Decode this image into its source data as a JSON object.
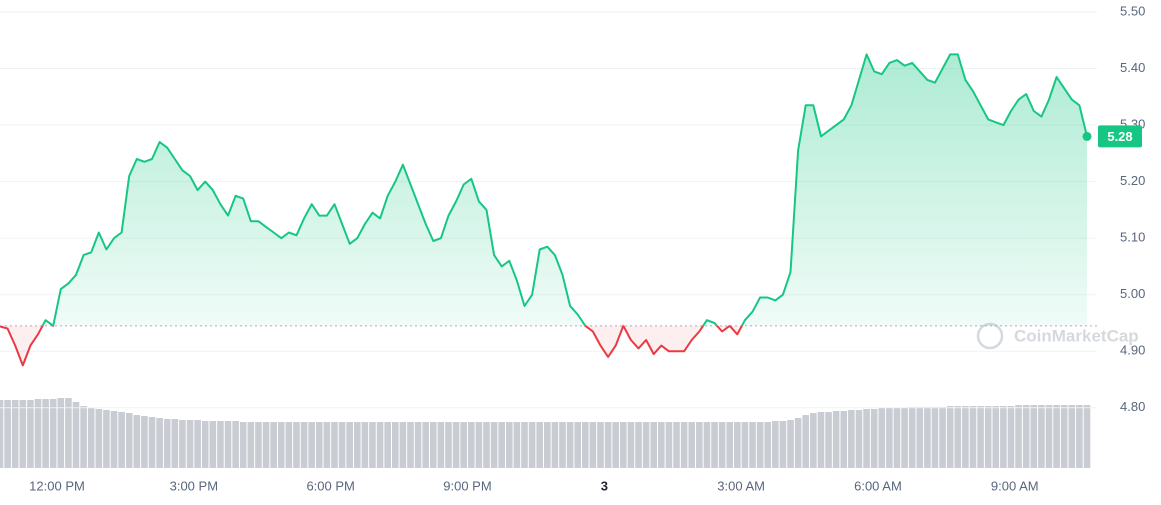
{
  "chart_data": {
    "type": "line",
    "values": [
      4.944,
      4.94,
      4.91,
      4.875,
      4.91,
      4.93,
      4.955,
      4.945,
      5.01,
      5.02,
      5.035,
      5.07,
      5.075,
      5.11,
      5.08,
      5.1,
      5.11,
      5.21,
      5.24,
      5.235,
      5.24,
      5.27,
      5.26,
      5.24,
      5.22,
      5.21,
      5.185,
      5.2,
      5.185,
      5.16,
      5.14,
      5.175,
      5.17,
      5.13,
      5.13,
      5.12,
      5.11,
      5.1,
      5.11,
      5.105,
      5.135,
      5.16,
      5.14,
      5.14,
      5.16,
      5.125,
      5.09,
      5.1,
      5.125,
      5.145,
      5.135,
      5.175,
      5.2,
      5.23,
      5.195,
      5.16,
      5.125,
      5.095,
      5.1,
      5.14,
      5.165,
      5.195,
      5.205,
      5.165,
      5.15,
      5.07,
      5.05,
      5.06,
      5.025,
      4.98,
      5.0,
      5.08,
      5.085,
      5.07,
      5.035,
      4.98,
      4.965,
      4.945,
      4.935,
      4.91,
      4.89,
      4.91,
      4.945,
      4.92,
      4.905,
      4.92,
      4.895,
      4.91,
      4.9,
      4.9,
      4.9,
      4.92,
      4.935,
      4.955,
      4.95,
      4.935,
      4.945,
      4.93,
      4.955,
      4.97,
      4.995,
      4.995,
      4.99,
      5.0,
      5.04,
      5.255,
      5.335,
      5.335,
      5.28,
      5.29,
      5.3,
      5.31,
      5.335,
      5.38,
      5.425,
      5.395,
      5.39,
      5.41,
      5.415,
      5.405,
      5.41,
      5.395,
      5.38,
      5.375,
      5.4,
      5.425,
      5.425,
      5.38,
      5.36,
      5.335,
      5.31,
      5.305,
      5.3,
      5.325,
      5.345,
      5.355,
      5.325,
      5.315,
      5.345,
      5.385,
      5.365,
      5.345,
      5.335,
      5.28
    ],
    "reference_line": 4.945,
    "up_color": "#16c784",
    "down_color": "#ea3943",
    "ylim": [
      4.69,
      5.5
    ],
    "yticks": [
      {
        "value": 4.8,
        "label": "4.80"
      },
      {
        "value": 4.9,
        "label": "4.90"
      },
      {
        "value": 5.0,
        "label": "5.00"
      },
      {
        "value": 5.1,
        "label": "5.10"
      },
      {
        "value": 5.2,
        "label": "5.20"
      },
      {
        "value": 5.3,
        "label": "5.30"
      },
      {
        "value": 5.4,
        "label": "5.40"
      },
      {
        "value": 5.5,
        "label": "5.50"
      }
    ],
    "xlim": [
      0,
      143
    ],
    "xticks": [
      {
        "value": 7.5,
        "label": "12:00 PM"
      },
      {
        "value": 25.5,
        "label": "3:00 PM"
      },
      {
        "value": 43.5,
        "label": "6:00 PM"
      },
      {
        "value": 61.5,
        "label": "9:00 PM"
      },
      {
        "value": 79.5,
        "label": "3"
      },
      {
        "value": 97.5,
        "label": "3:00 AM"
      },
      {
        "value": 115.5,
        "label": "6:00 AM"
      },
      {
        "value": 133.5,
        "label": "9:00 AM"
      }
    ],
    "grid": true,
    "volume": {
      "color": "#c9ccd3",
      "lim": [
        0,
        70
      ],
      "values": [
        68,
        68,
        68,
        68,
        68,
        69,
        69,
        69,
        70,
        70,
        66,
        62,
        60,
        59,
        58,
        57,
        56,
        55,
        53,
        52,
        51,
        50,
        49,
        49,
        48,
        48,
        48,
        47,
        47,
        47,
        47,
        47,
        46,
        46,
        46,
        46,
        46,
        46,
        46,
        46,
        46,
        46,
        46,
        46,
        46,
        46,
        46,
        46,
        46,
        46,
        46,
        46,
        46,
        46,
        46,
        46,
        46,
        46,
        46,
        46,
        46,
        46,
        46,
        46,
        46,
        46,
        46,
        46,
        46,
        46,
        46,
        46,
        46,
        46,
        46,
        46,
        46,
        46,
        46,
        46,
        46,
        46,
        46,
        46,
        46,
        46,
        46,
        46,
        46,
        46,
        46,
        46,
        46,
        46,
        46,
        46,
        46,
        46,
        46,
        46,
        46,
        46,
        47,
        47,
        48,
        50,
        53,
        55,
        56,
        56,
        57,
        57,
        58,
        58,
        59,
        59,
        60,
        60,
        60,
        60,
        61,
        61,
        61,
        61,
        61,
        62,
        62,
        62,
        62,
        62,
        62,
        62,
        62,
        62,
        63,
        63,
        63,
        63,
        63,
        63,
        63,
        63,
        63,
        63
      ]
    },
    "watermark": "CoinMarketCap"
  }
}
